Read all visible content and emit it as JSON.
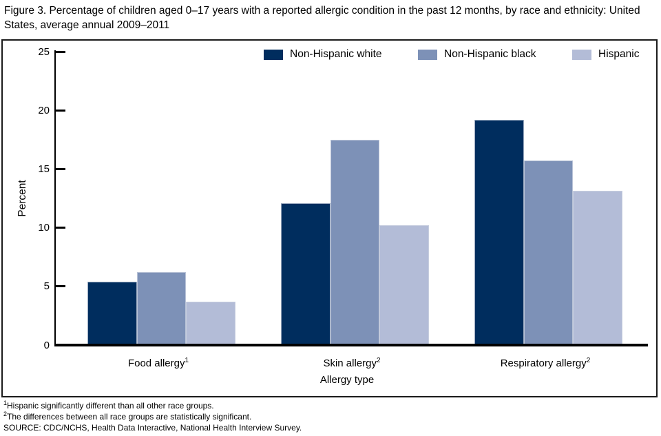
{
  "figure": {
    "title": "Figure 3. Percentage of children aged 0–17 years with a reported allergic condition in the past 12 months, by race and ethnicity: United States, average annual 2009–2011"
  },
  "chart_data": {
    "type": "bar",
    "categories": [
      {
        "label": "Food allergy",
        "sup": "1"
      },
      {
        "label": "Skin allergy",
        "sup": "2"
      },
      {
        "label": "Respiratory allergy",
        "sup": "2"
      }
    ],
    "series": [
      {
        "name": "Non-Hispanic white",
        "color": "#002d5e",
        "values": [
          5.3,
          12.0,
          19.1
        ]
      },
      {
        "name": "Non-Hispanic black",
        "color": "#7d91b7",
        "values": [
          6.1,
          17.4,
          15.6
        ]
      },
      {
        "name": "Hispanic",
        "color": "#b3bcd7",
        "values": [
          3.6,
          10.1,
          13.0
        ]
      }
    ],
    "xlabel": "Allergy type",
    "ylabel": "Percent",
    "ylim": [
      0,
      25
    ],
    "yticks": [
      0,
      5,
      10,
      15,
      20,
      25
    ],
    "legend_position": "top",
    "grid": false
  },
  "footnotes": [
    {
      "sup": "1",
      "text": "Hispanic significantly different than all other race groups."
    },
    {
      "sup": "2",
      "text": "The differences between all race groups are statistically significant."
    },
    {
      "sup": "",
      "text": "SOURCE: CDC/NCHS, Health Data Interactive, National Health Interview Survey."
    }
  ]
}
